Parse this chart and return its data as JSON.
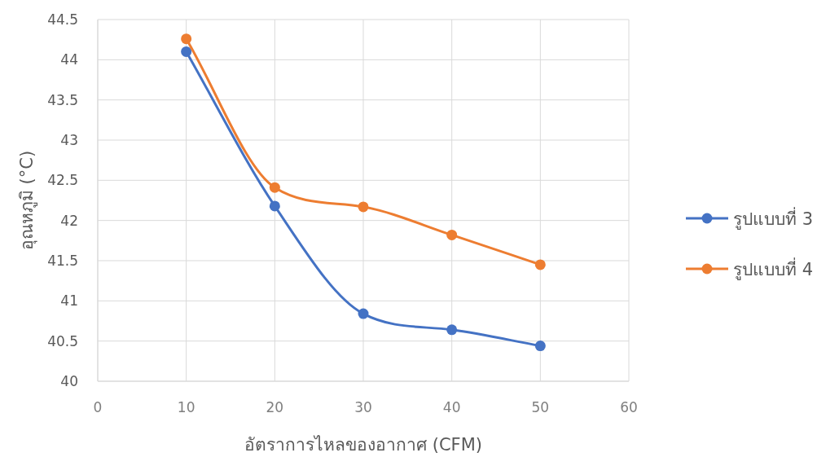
{
  "chart_data": {
    "type": "line",
    "xlabel": "อัตราการไหลของอากาศ (CFM)",
    "ylabel": "อุณหภูมิ (°C)",
    "x": [
      10,
      20,
      30,
      40,
      50
    ],
    "series": [
      {
        "name": "รูปแบบที่ 3",
        "color": "#4472c4",
        "values": [
          44.1,
          42.18,
          40.84,
          40.64,
          40.44
        ]
      },
      {
        "name": "รูปแบบที่ 4",
        "color": "#ed7d31",
        "values": [
          44.26,
          42.41,
          42.17,
          41.82,
          41.45
        ]
      }
    ],
    "xlim": [
      0,
      60
    ],
    "xticks": [
      0,
      10,
      20,
      30,
      40,
      50,
      60
    ],
    "ylim": [
      40,
      44.5
    ],
    "yticks": [
      40,
      40.5,
      41,
      41.5,
      42,
      42.5,
      43,
      43.5,
      44,
      44.5
    ],
    "grid": true,
    "legend": "right",
    "marker": "circle",
    "line_style": "solid"
  }
}
